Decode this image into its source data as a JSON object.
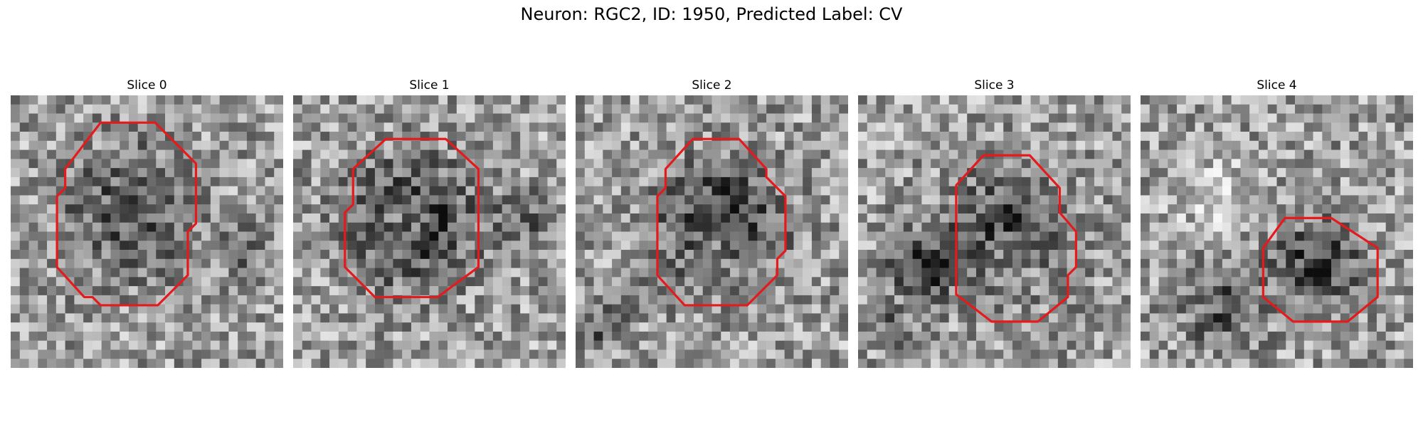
{
  "figure": {
    "title": "Neuron: RGC2, ID: 1950, Predicted Label: CV"
  },
  "contour_color": "#e41a1c",
  "panels": [
    {
      "title": "Slice 0",
      "contour": [
        [
          0.33,
          0.1
        ],
        [
          0.53,
          0.1
        ],
        [
          0.68,
          0.25
        ],
        [
          0.68,
          0.47
        ],
        [
          0.65,
          0.5
        ],
        [
          0.65,
          0.66
        ],
        [
          0.54,
          0.77
        ],
        [
          0.33,
          0.77
        ],
        [
          0.3,
          0.74
        ],
        [
          0.27,
          0.74
        ],
        [
          0.17,
          0.63
        ],
        [
          0.17,
          0.37
        ],
        [
          0.2,
          0.34
        ],
        [
          0.2,
          0.27
        ]
      ],
      "blobs": [
        [
          0.45,
          0.43,
          0.3,
          -0.45
        ],
        [
          0.45,
          0.43,
          0.2,
          0.2
        ],
        [
          0.85,
          0.55,
          0.12,
          -0.25
        ]
      ]
    },
    {
      "title": "Slice 1",
      "contour": [
        [
          0.34,
          0.16
        ],
        [
          0.56,
          0.16
        ],
        [
          0.68,
          0.27
        ],
        [
          0.68,
          0.63
        ],
        [
          0.53,
          0.74
        ],
        [
          0.3,
          0.74
        ],
        [
          0.19,
          0.63
        ],
        [
          0.19,
          0.43
        ],
        [
          0.22,
          0.4
        ],
        [
          0.22,
          0.27
        ]
      ],
      "blobs": [
        [
          0.43,
          0.47,
          0.3,
          -0.55
        ],
        [
          0.4,
          0.47,
          0.18,
          0.35
        ],
        [
          0.86,
          0.45,
          0.14,
          -0.25
        ]
      ]
    },
    {
      "title": "Slice 2",
      "contour": [
        [
          0.43,
          0.16
        ],
        [
          0.6,
          0.16
        ],
        [
          0.7,
          0.27
        ],
        [
          0.7,
          0.3
        ],
        [
          0.77,
          0.37
        ],
        [
          0.77,
          0.57
        ],
        [
          0.74,
          0.6
        ],
        [
          0.74,
          0.66
        ],
        [
          0.63,
          0.77
        ],
        [
          0.4,
          0.77
        ],
        [
          0.3,
          0.66
        ],
        [
          0.3,
          0.37
        ],
        [
          0.33,
          0.34
        ],
        [
          0.33,
          0.27
        ]
      ],
      "blobs": [
        [
          0.52,
          0.48,
          0.3,
          -0.5
        ],
        [
          0.52,
          0.53,
          0.17,
          0.3
        ],
        [
          0.1,
          0.85,
          0.12,
          -0.25
        ]
      ]
    },
    {
      "title": "Slice 3",
      "contour": [
        [
          0.46,
          0.22
        ],
        [
          0.63,
          0.22
        ],
        [
          0.74,
          0.34
        ],
        [
          0.74,
          0.43
        ],
        [
          0.8,
          0.5
        ],
        [
          0.8,
          0.63
        ],
        [
          0.77,
          0.66
        ],
        [
          0.77,
          0.74
        ],
        [
          0.66,
          0.83
        ],
        [
          0.49,
          0.83
        ],
        [
          0.36,
          0.73
        ],
        [
          0.36,
          0.33
        ]
      ],
      "blobs": [
        [
          0.55,
          0.52,
          0.3,
          -0.45
        ],
        [
          0.57,
          0.6,
          0.16,
          0.3
        ],
        [
          0.23,
          0.63,
          0.16,
          -0.45
        ],
        [
          0.14,
          0.86,
          0.09,
          -0.3
        ]
      ]
    },
    {
      "title": "Slice 4",
      "contour": [
        [
          0.53,
          0.45
        ],
        [
          0.7,
          0.45
        ],
        [
          0.87,
          0.56
        ],
        [
          0.87,
          0.74
        ],
        [
          0.76,
          0.83
        ],
        [
          0.56,
          0.83
        ],
        [
          0.45,
          0.74
        ],
        [
          0.45,
          0.56
        ]
      ],
      "blobs": [
        [
          0.66,
          0.62,
          0.22,
          -0.4
        ],
        [
          0.3,
          0.78,
          0.2,
          -0.3
        ],
        [
          0.25,
          0.35,
          0.18,
          0.2
        ]
      ]
    }
  ]
}
